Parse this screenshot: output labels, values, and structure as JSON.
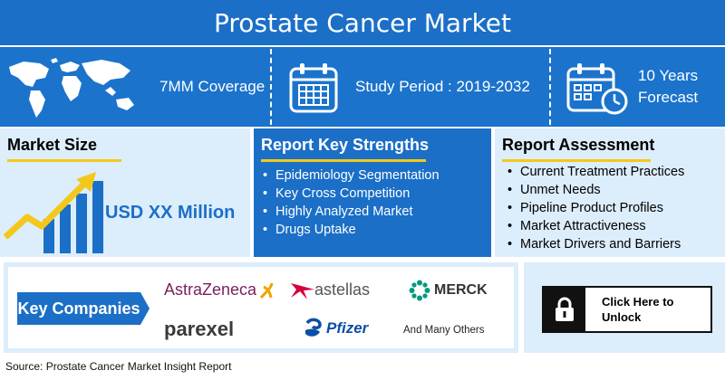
{
  "title": "Prostate Cancer Market",
  "stats": {
    "coverage": "7MM Coverage",
    "study_period": "Study Period : 2019-2032",
    "forecast_line1": "10 Years",
    "forecast_line2": "Forecast"
  },
  "market_size": {
    "heading": "Market Size",
    "value": "USD XX Million"
  },
  "key_strengths": {
    "heading": "Report Key Strengths",
    "items": [
      "Epidemiology Segmentation",
      "Key Cross Competition",
      "Highly Analyzed Market",
      "Drugs Uptake"
    ]
  },
  "assessment": {
    "heading": "Report Assessment",
    "items": [
      "Current Treatment Practices",
      "Unmet Needs",
      "Pipeline Product Profiles",
      "Market Attractiveness",
      "Market Drivers and Barriers"
    ]
  },
  "companies": {
    "label": "Key Companies",
    "logos": [
      "AstraZeneca",
      "astellas",
      "MERCK",
      "parexel",
      "Pfizer"
    ],
    "others": "And Many Others"
  },
  "unlock": {
    "line1": "Click Here to",
    "line2": "Unlock",
    "icon": "lock-icon"
  },
  "source": "Source: Prostate Cancer Market Insight Report",
  "colors": {
    "primary_blue": "#1b6fc7",
    "light_blue": "#dcedfb",
    "accent_yellow": "#f3c81b"
  }
}
